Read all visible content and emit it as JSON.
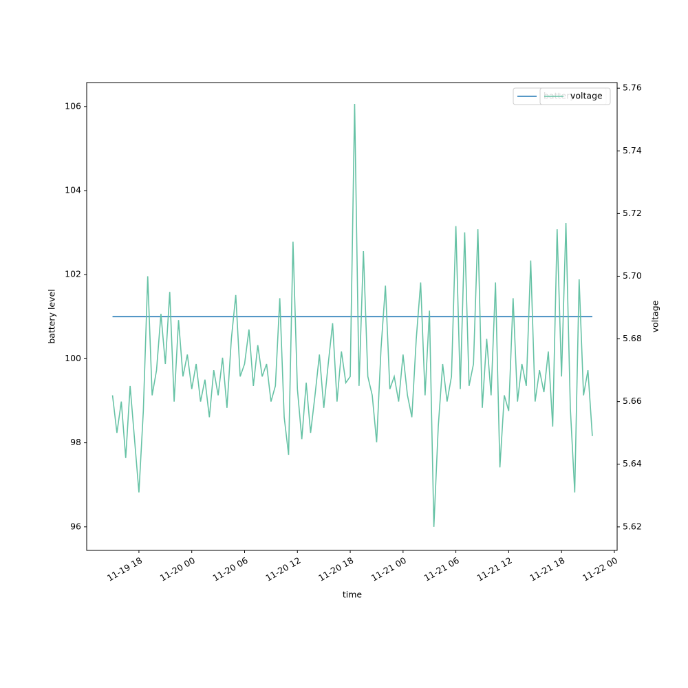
{
  "chart_data": {
    "type": "line",
    "xlabel": "time",
    "ylabel": "battery level",
    "y2label": "voltage",
    "x": [
      "11-19 15:00",
      "11-19 15:30",
      "11-19 16:00",
      "11-19 16:30",
      "11-19 17:00",
      "11-19 17:30",
      "11-19 18:00",
      "11-19 18:30",
      "11-19 19:00",
      "11-19 19:30",
      "11-19 20:00",
      "11-19 20:30",
      "11-19 21:00",
      "11-19 21:30",
      "11-19 22:00",
      "11-19 22:30",
      "11-19 23:00",
      "11-19 23:30",
      "11-20 00:00",
      "11-20 00:30",
      "11-20 01:00",
      "11-20 01:30",
      "11-20 02:00",
      "11-20 02:30",
      "11-20 03:00",
      "11-20 03:30",
      "11-20 04:00",
      "11-20 04:30",
      "11-20 05:00",
      "11-20 05:30",
      "11-20 06:00",
      "11-20 06:30",
      "11-20 07:00",
      "11-20 07:30",
      "11-20 08:00",
      "11-20 08:30",
      "11-20 09:00",
      "11-20 09:30",
      "11-20 10:00",
      "11-20 10:30",
      "11-20 11:00",
      "11-20 11:30",
      "11-20 12:00",
      "11-20 12:30",
      "11-20 13:00",
      "11-20 13:30",
      "11-20 14:00",
      "11-20 14:30",
      "11-20 15:00",
      "11-20 15:30",
      "11-20 16:00",
      "11-20 16:30",
      "11-20 17:00",
      "11-20 17:30",
      "11-20 18:00",
      "11-20 18:30",
      "11-20 19:00",
      "11-20 19:30",
      "11-20 20:00",
      "11-20 20:30",
      "11-20 21:00",
      "11-20 21:30",
      "11-20 22:00",
      "11-20 22:30",
      "11-20 23:00",
      "11-20 23:30",
      "11-21 00:00",
      "11-21 00:30",
      "11-21 01:00",
      "11-21 01:30",
      "11-21 02:00",
      "11-21 02:30",
      "11-21 03:00",
      "11-21 03:30",
      "11-21 04:00",
      "11-21 04:30",
      "11-21 05:00",
      "11-21 05:30",
      "11-21 06:00",
      "11-21 06:30",
      "11-21 07:00",
      "11-21 07:30",
      "11-21 08:00",
      "11-21 08:30",
      "11-21 09:00",
      "11-21 09:30",
      "11-21 10:00",
      "11-21 10:30",
      "11-21 11:00",
      "11-21 11:30",
      "11-21 12:00",
      "11-21 12:30",
      "11-21 13:00",
      "11-21 13:30",
      "11-21 14:00",
      "11-21 14:30",
      "11-21 15:00",
      "11-21 15:30",
      "11-21 16:00",
      "11-21 16:30",
      "11-21 17:00",
      "11-21 17:30",
      "11-21 18:00",
      "11-21 18:30",
      "11-21 19:00",
      "11-21 19:30",
      "11-21 20:00",
      "11-21 20:30",
      "11-21 21:00",
      "11-21 21:30"
    ],
    "series": [
      {
        "name": "battery",
        "color": "#1f77b4",
        "values": [
          101,
          101,
          101,
          101,
          101,
          101,
          101,
          101,
          101,
          101,
          101,
          101,
          101,
          101,
          101,
          101,
          101,
          101,
          101,
          101,
          101,
          101,
          101,
          101,
          101,
          101,
          101,
          101,
          101,
          101,
          101,
          101,
          101,
          101,
          101,
          101,
          101,
          101,
          101,
          101,
          101,
          101,
          101,
          101,
          101,
          101,
          101,
          101,
          101,
          101,
          101,
          101,
          101,
          101,
          101,
          101,
          101,
          101,
          101,
          101,
          101,
          101,
          101,
          101,
          101,
          101,
          101,
          101,
          101,
          101,
          101,
          101,
          101,
          101,
          101,
          101,
          101,
          101,
          101,
          101,
          101,
          101,
          101,
          101,
          101,
          101,
          101,
          101,
          101,
          101,
          101,
          101,
          101,
          101,
          101,
          101,
          101,
          101,
          101,
          101,
          101,
          101,
          101,
          101,
          101,
          101,
          101,
          101,
          101,
          101
        ]
      },
      {
        "name": "voltage",
        "color": "#66c2a5",
        "axis": "y2",
        "values": [
          5.662,
          5.65,
          5.66,
          5.642,
          5.665,
          5.648,
          5.631,
          5.657,
          5.7,
          5.662,
          5.67,
          5.688,
          5.672,
          5.695,
          5.66,
          5.686,
          5.668,
          5.675,
          5.664,
          5.672,
          5.66,
          5.667,
          5.655,
          5.67,
          5.662,
          5.674,
          5.658,
          5.68,
          5.694,
          5.668,
          5.672,
          5.683,
          5.665,
          5.678,
          5.668,
          5.672,
          5.66,
          5.665,
          5.693,
          5.655,
          5.643,
          5.711,
          5.664,
          5.648,
          5.666,
          5.65,
          5.662,
          5.675,
          5.658,
          5.672,
          5.685,
          5.66,
          5.676,
          5.666,
          5.668,
          5.755,
          5.665,
          5.708,
          5.668,
          5.662,
          5.647,
          5.677,
          5.697,
          5.664,
          5.668,
          5.66,
          5.675,
          5.662,
          5.655,
          5.68,
          5.698,
          5.662,
          5.689,
          5.62,
          5.652,
          5.672,
          5.66,
          5.668,
          5.716,
          5.664,
          5.714,
          5.665,
          5.672,
          5.715,
          5.658,
          5.68,
          5.662,
          5.698,
          5.639,
          5.662,
          5.657,
          5.693,
          5.66,
          5.672,
          5.665,
          5.705,
          5.66,
          5.67,
          5.663,
          5.676,
          5.652,
          5.715,
          5.668,
          5.717,
          5.658,
          5.631,
          5.699,
          5.662,
          5.67,
          5.649
        ]
      }
    ],
    "xlim": [
      "11-19 12:04",
      "11-22 00:19"
    ],
    "xticks": [
      {
        "value": "11-19 18:00",
        "label": "11-19 18"
      },
      {
        "value": "11-20 00:00",
        "label": "11-20 00"
      },
      {
        "value": "11-20 06:00",
        "label": "11-20 06"
      },
      {
        "value": "11-20 12:00",
        "label": "11-20 12"
      },
      {
        "value": "11-20 18:00",
        "label": "11-20 18"
      },
      {
        "value": "11-21 00:00",
        "label": "11-21 00"
      },
      {
        "value": "11-21 06:00",
        "label": "11-21 06"
      },
      {
        "value": "11-21 12:00",
        "label": "11-21 12"
      },
      {
        "value": "11-21 18:00",
        "label": "11-21 18"
      },
      {
        "value": "11-22 00:00",
        "label": "11-22 00"
      }
    ],
    "ylim": [
      95.44,
      106.57
    ],
    "yticks": [
      96,
      98,
      100,
      102,
      104,
      106
    ],
    "y2lim": [
      5.6125,
      5.7618
    ],
    "y2ticks": [
      5.62,
      5.64,
      5.66,
      5.68,
      {
        "value": 5.7,
        "label": "5.70"
      },
      5.72,
      5.74,
      5.76
    ],
    "legend": "upper right"
  }
}
